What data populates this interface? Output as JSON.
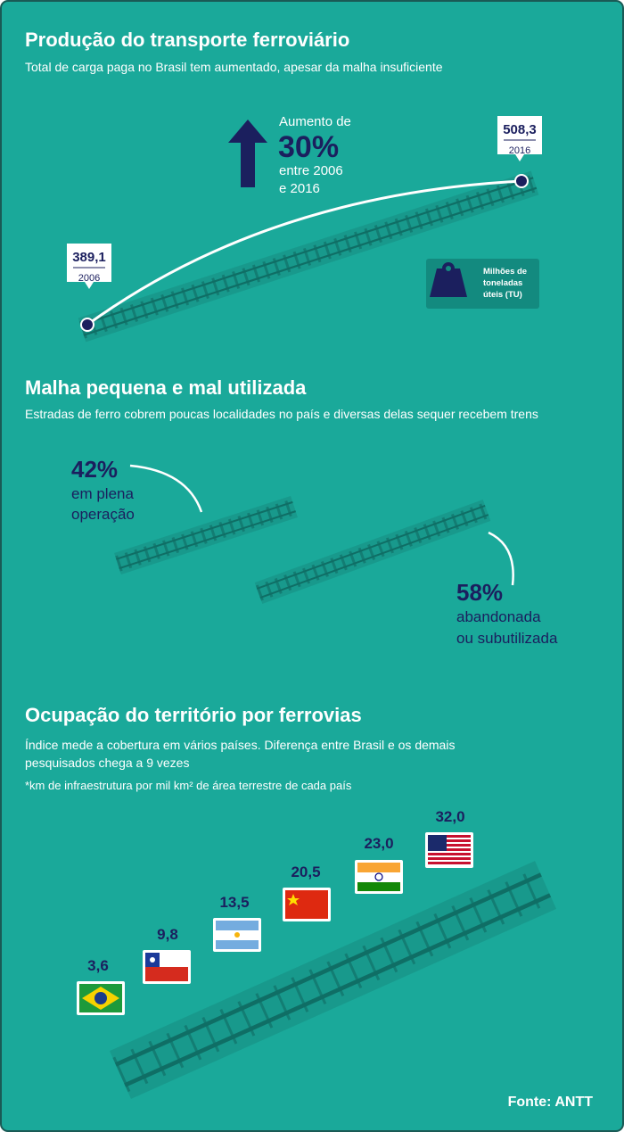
{
  "section1": {
    "title": "Produção do transporte ferroviário",
    "subtitle": "Total de carga paga no Brasil tem aumentado, apesar da malha insuficiente",
    "increase": {
      "label": "Aumento de",
      "value": "30%",
      "line1": "entre 2006",
      "line2": "e 2016"
    },
    "points": [
      {
        "value": "389,1",
        "year": "2006"
      },
      {
        "value": "508,3",
        "year": "2016"
      }
    ],
    "legend": [
      "Milhões de",
      "toneladas",
      "úteis (TU)"
    ]
  },
  "section2": {
    "title": "Malha pequena e mal utilizada",
    "subtitle": "Estradas de ferro cobrem poucas localidades no país e diversas delas sequer recebem trens",
    "parts": [
      {
        "value": "42%",
        "lines": [
          "em plena",
          "operação"
        ]
      },
      {
        "value": "58%",
        "lines": [
          "abandonada",
          "ou subutilizada"
        ]
      }
    ]
  },
  "section3": {
    "title": "Ocupação do território por ferrovias",
    "subtitle": [
      "Índice mede a cobertura em vários países. Diferença entre Brasil e os demais",
      "pesquisados chega a 9 vezes"
    ],
    "note": "*km de infraestrutura por mil km² de área terrestre de cada país",
    "values": [
      "3,6",
      "9,8",
      "13,5",
      "20,5",
      "23,0",
      "32,0"
    ],
    "source": "Fonte: ANTT"
  }
}
